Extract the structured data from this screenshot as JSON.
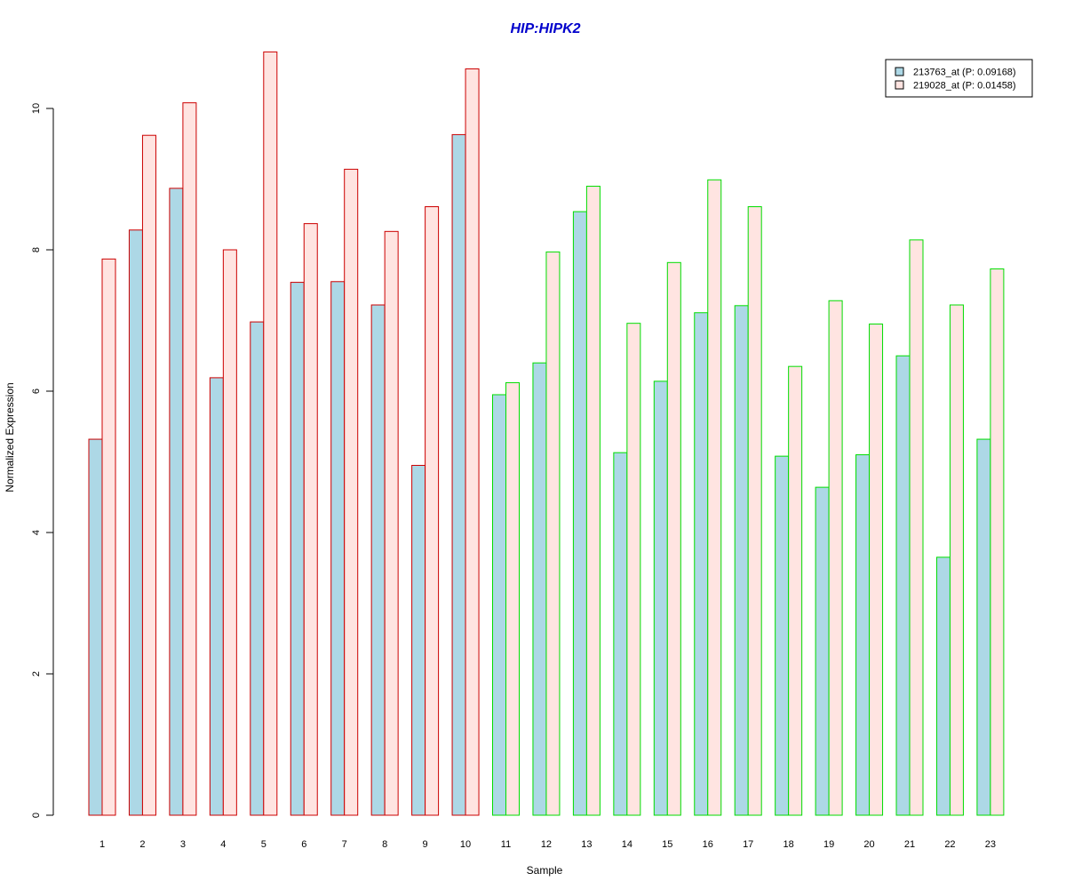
{
  "chart_data": {
    "type": "bar",
    "title": "HIP:HIPK2",
    "title_color": "#0000CC",
    "xlabel": "Sample",
    "ylabel": "Normalized Expression",
    "ylim": [
      0,
      10.8
    ],
    "yticks": [
      0,
      2,
      4,
      6,
      8,
      10
    ],
    "categories": [
      "1",
      "2",
      "3",
      "4",
      "5",
      "6",
      "7",
      "8",
      "9",
      "10",
      "11",
      "12",
      "13",
      "14",
      "15",
      "16",
      "17",
      "18",
      "19",
      "20",
      "21",
      "22",
      "23"
    ],
    "series": [
      {
        "name": "213763_at (P: 0.09168)",
        "fill": "#ADD8E6",
        "values": [
          5.32,
          8.28,
          8.87,
          6.19,
          6.98,
          7.54,
          7.55,
          7.22,
          4.95,
          9.63,
          5.95,
          6.4,
          8.54,
          5.13,
          6.14,
          7.11,
          7.21,
          5.08,
          4.64,
          5.1,
          6.5,
          3.65,
          5.32
        ]
      },
      {
        "name": "219028_at (P: 0.01458)",
        "fill": "#FFE4E1",
        "values": [
          7.87,
          9.62,
          10.08,
          8.0,
          10.8,
          8.37,
          9.14,
          8.26,
          8.61,
          10.56,
          6.12,
          7.97,
          8.9,
          6.96,
          7.82,
          8.99,
          8.61,
          6.35,
          7.28,
          6.95,
          8.14,
          7.22,
          7.73
        ]
      }
    ],
    "group_border_colors": [
      "#CC0000",
      "#CC0000",
      "#CC0000",
      "#CC0000",
      "#CC0000",
      "#CC0000",
      "#CC0000",
      "#CC0000",
      "#CC0000",
      "#CC0000",
      "#00DD00",
      "#00DD00",
      "#00DD00",
      "#00DD00",
      "#00DD00",
      "#00DD00",
      "#00DD00",
      "#00DD00",
      "#00DD00",
      "#00DD00",
      "#00DD00",
      "#00DD00",
      "#00DD00"
    ],
    "legend_position": "top-right",
    "grid": false
  }
}
